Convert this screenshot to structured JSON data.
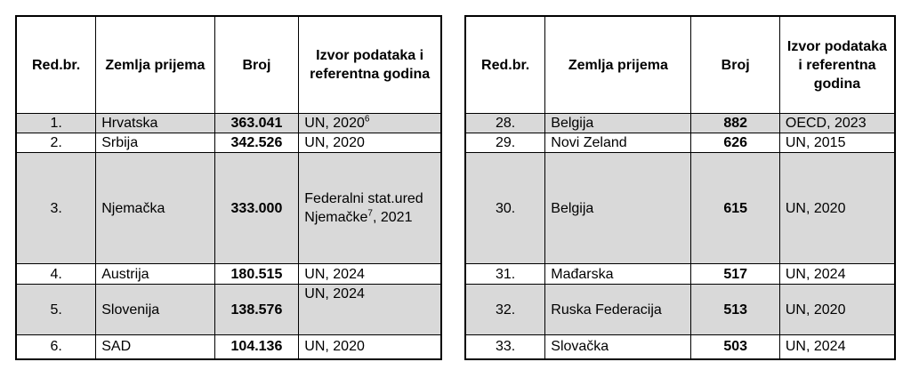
{
  "header": [
    "Red.br.",
    "Zemlja prijema",
    "Broj",
    "Izvor podataka i referentna godina"
  ],
  "tables": [
    {
      "rows": [
        {
          "rank": "1.",
          "country": "Hrvatska",
          "count": "363.041",
          "source": [
            {
              "text": "UN, 2020"
            },
            {
              "sup": "6"
            }
          ]
        },
        {
          "rank": "2.",
          "country": "Srbija",
          "count": "342.526",
          "source": [
            {
              "text": "UN, 2020"
            }
          ]
        },
        {
          "rank": "3.",
          "country": "Njemačka",
          "count": "333.000",
          "source": [
            {
              "text": "Federalni stat.ured Njemačke"
            },
            {
              "sup": "7"
            },
            {
              "text": ", 2021"
            }
          ]
        },
        {
          "rank": "4.",
          "country": "Austrija",
          "count": "180.515",
          "source": [
            {
              "text": "UN, 2024"
            }
          ]
        },
        {
          "rank": "5.",
          "country": "Slovenija",
          "count": "138.576",
          "source": [
            {
              "text": "UN, 2024"
            }
          ]
        },
        {
          "rank": "6.",
          "country": "SAD",
          "count": "104.136",
          "source": [
            {
              "text": "UN, 2020"
            }
          ]
        }
      ]
    },
    {
      "rows": [
        {
          "rank": "28.",
          "country": "Belgija",
          "count": "882",
          "source": [
            {
              "text": "OECD, 2023"
            }
          ]
        },
        {
          "rank": "29.",
          "country": "Novi Zeland",
          "count": "626",
          "source": [
            {
              "text": "UN, 2015"
            }
          ]
        },
        {
          "rank": "30.",
          "country": "Belgija",
          "count": "615",
          "source": [
            {
              "text": "UN, 2020"
            }
          ]
        },
        {
          "rank": "31.",
          "country": "Mađarska",
          "count": "517",
          "source": [
            {
              "text": "UN, 2024"
            }
          ]
        },
        {
          "rank": "32.",
          "country": "Ruska Federacija",
          "count": "513",
          "source": [
            {
              "text": "UN, 2020"
            }
          ]
        },
        {
          "rank": "33.",
          "country": "Slovačka",
          "count": "503",
          "source": [
            {
              "text": "UN, 2024"
            }
          ]
        }
      ]
    }
  ]
}
